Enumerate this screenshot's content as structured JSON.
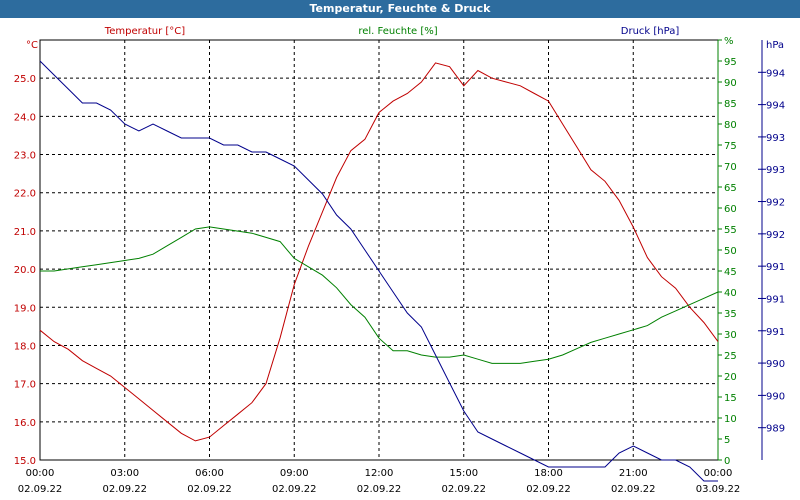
{
  "window": {
    "title": "Temperatur, Feuchte & Druck"
  },
  "colors": {
    "temperature": "#c00000",
    "humidity": "#008000",
    "pressure": "#00008b",
    "grid": "#000000",
    "titlebar": "#2d6c9e"
  },
  "chart_data": {
    "type": "line",
    "title": "Temperatur, Feuchte & Druck",
    "grid": true,
    "x_ticks": [
      {
        "time": "00:00",
        "date": "02.09.22"
      },
      {
        "time": "03:00",
        "date": "02.09.22"
      },
      {
        "time": "06:00",
        "date": "02.09.22"
      },
      {
        "time": "09:00",
        "date": "02.09.22"
      },
      {
        "time": "12:00",
        "date": "02.09.22"
      },
      {
        "time": "15:00",
        "date": "02.09.22"
      },
      {
        "time": "18:00",
        "date": "02.09.22"
      },
      {
        "time": "21:00",
        "date": "02.09.22"
      },
      {
        "time": "00:00",
        "date": "03.09.22"
      }
    ],
    "x_range_hours": [
      0,
      24
    ],
    "axes": {
      "temperature": {
        "label": "Temperatur [°C]",
        "unit": "°C",
        "range": [
          15.0,
          26.0
        ],
        "ticks": [
          "15.0",
          "16.0",
          "17.0",
          "18.0",
          "19.0",
          "20.0",
          "21.0",
          "22.0",
          "23.0",
          "24.0",
          "25.0"
        ]
      },
      "humidity": {
        "label": "rel. Feuchte [%]",
        "unit": "%",
        "range": [
          0,
          100
        ],
        "ticks": [
          "0",
          "5",
          "10",
          "15",
          "20",
          "25",
          "30",
          "35",
          "40",
          "45",
          "50",
          "55",
          "60",
          "65",
          "70",
          "75",
          "80",
          "85",
          "90",
          "95",
          "%"
        ]
      },
      "pressure": {
        "label": "Druck [hPa]",
        "unit": "hPa",
        "range": [
          988.5,
          994.5
        ],
        "ticks": [
          "989",
          "990",
          "990",
          "991",
          "991",
          "991",
          "992",
          "992",
          "993",
          "993",
          "994",
          "994"
        ]
      }
    },
    "series": [
      {
        "name": "Temperatur [°C]",
        "axis": "temperature",
        "x_hours": [
          0,
          0.5,
          1,
          1.5,
          2,
          2.5,
          3,
          3.5,
          4,
          4.5,
          5,
          5.5,
          6,
          6.5,
          7,
          7.5,
          8,
          8.5,
          9,
          9.5,
          10,
          10.5,
          11,
          11.5,
          12,
          12.5,
          13,
          13.5,
          14,
          14.5,
          15,
          15.5,
          16,
          16.5,
          17,
          17.5,
          18,
          18.5,
          19,
          19.5,
          20,
          20.5,
          21,
          21.5,
          22,
          22.5,
          23,
          23.5,
          24
        ],
        "values": [
          18.4,
          18.1,
          17.9,
          17.6,
          17.4,
          17.2,
          16.9,
          16.6,
          16.3,
          16.0,
          15.7,
          15.5,
          15.6,
          15.9,
          16.2,
          16.5,
          17.0,
          18.2,
          19.6,
          20.6,
          21.5,
          22.4,
          23.1,
          23.4,
          24.1,
          24.4,
          24.6,
          24.9,
          25.4,
          25.3,
          24.8,
          25.2,
          25.0,
          24.9,
          24.8,
          24.6,
          24.4,
          23.8,
          23.2,
          22.6,
          22.3,
          21.8,
          21.1,
          20.3,
          19.8,
          19.5,
          19.0,
          18.6,
          18.1
        ]
      },
      {
        "name": "rel. Feuchte [%]",
        "axis": "humidity",
        "x_hours": [
          0,
          0.5,
          1,
          1.5,
          2,
          2.5,
          3,
          3.5,
          4,
          4.5,
          5,
          5.5,
          6,
          6.5,
          7,
          7.5,
          8,
          8.5,
          9,
          9.5,
          10,
          10.5,
          11,
          11.5,
          12,
          12.5,
          13,
          13.5,
          14,
          14.5,
          15,
          15.5,
          16,
          16.5,
          17,
          17.5,
          18,
          18.5,
          19,
          19.5,
          20,
          20.5,
          21,
          21.5,
          22,
          22.5,
          23,
          23.5,
          24
        ],
        "values": [
          45,
          45,
          45.5,
          46,
          46.5,
          47,
          47.5,
          48,
          49,
          51,
          53,
          55,
          55.5,
          55,
          54.5,
          54,
          53,
          52,
          48,
          46,
          44,
          41,
          37,
          34,
          29,
          26,
          26,
          25,
          24.5,
          24.5,
          25,
          24,
          23,
          23,
          23,
          23.5,
          24,
          25,
          26.5,
          28,
          29,
          30,
          31,
          32,
          34,
          35.5,
          37,
          38.5,
          40
        ]
      },
      {
        "name": "Druck [hPa]",
        "axis": "pressure",
        "x_hours": [
          0,
          0.5,
          1,
          1.5,
          2,
          2.5,
          3,
          3.5,
          4,
          4.5,
          5,
          5.5,
          6,
          6.5,
          7,
          7.5,
          8,
          8.5,
          9,
          9.5,
          10,
          10.5,
          11,
          11.5,
          12,
          12.5,
          13,
          13.5,
          14,
          14.5,
          15,
          15.5,
          16,
          16.5,
          17,
          17.5,
          18,
          18.5,
          19,
          19.5,
          20,
          20.5,
          21,
          21.5,
          22,
          22.5,
          23,
          23.5,
          24
        ],
        "values": [
          994.2,
          994.0,
          993.8,
          993.6,
          993.6,
          993.5,
          993.3,
          993.2,
          993.3,
          993.2,
          993.1,
          993.1,
          993.1,
          993.0,
          993.0,
          992.9,
          992.9,
          992.8,
          992.7,
          992.5,
          992.3,
          992.0,
          991.8,
          991.5,
          991.2,
          990.9,
          990.6,
          990.4,
          990.0,
          989.6,
          989.2,
          988.9,
          988.8,
          988.7,
          988.6,
          988.5,
          988.4,
          988.4,
          988.4,
          988.4,
          988.4,
          988.6,
          988.7,
          988.6,
          988.5,
          988.5,
          988.4,
          988.2,
          988.2
        ]
      }
    ]
  }
}
